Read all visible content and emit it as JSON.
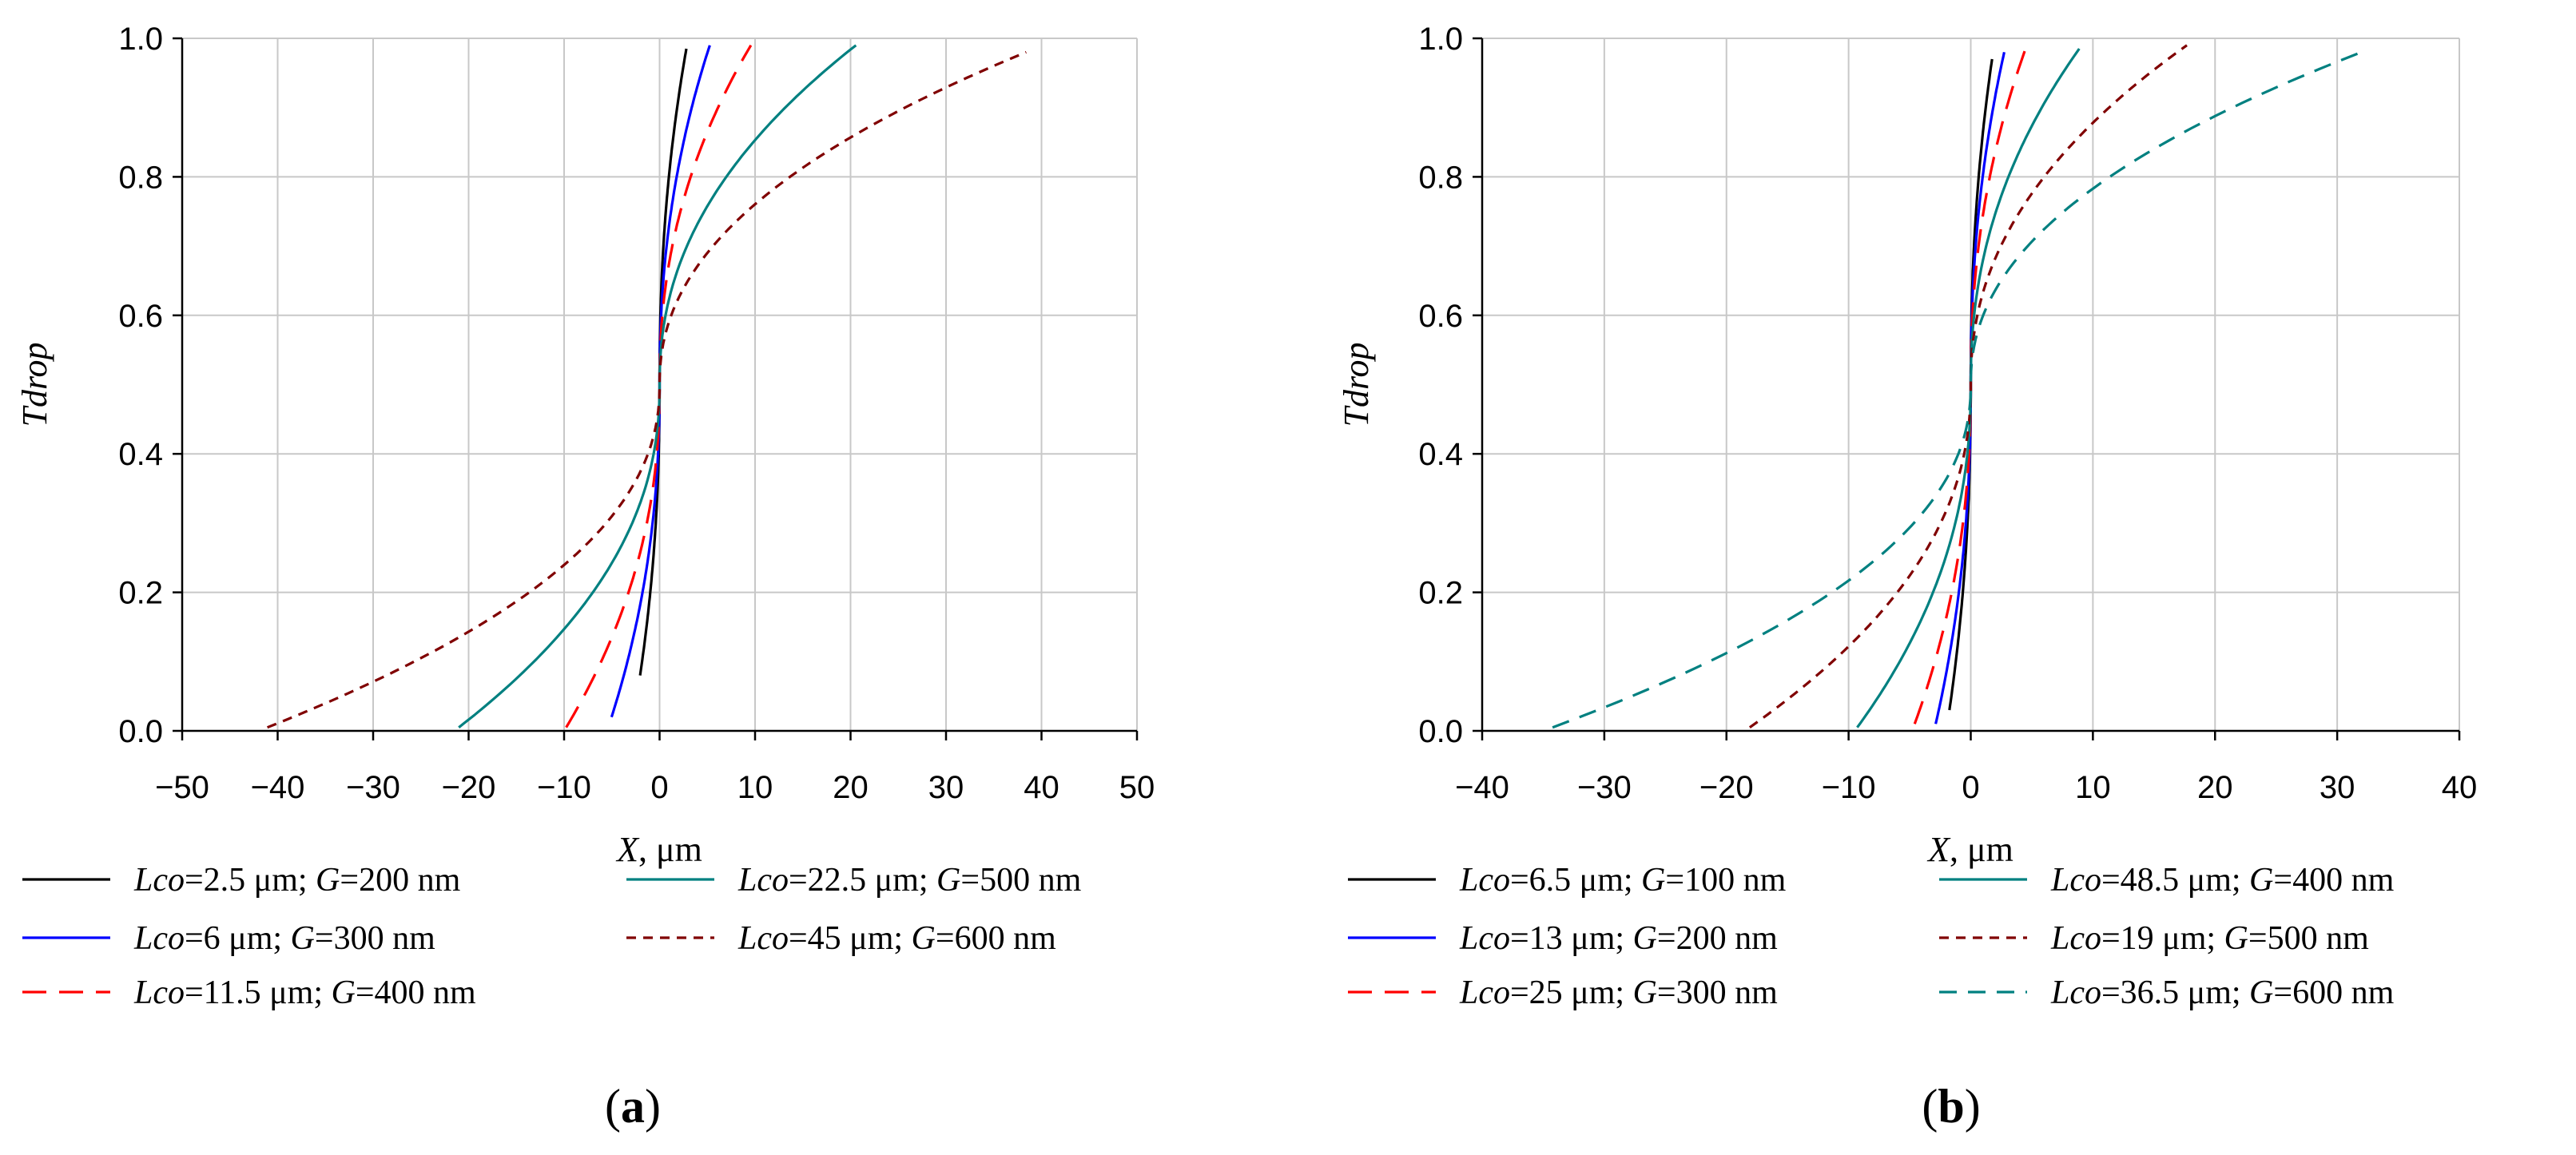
{
  "chart_data": [
    {
      "type": "line",
      "panel_label": "a",
      "xlabel": "X, μm",
      "ylabel": "Tdrop",
      "xlim": [
        -50,
        50
      ],
      "ylim": [
        0,
        1.0
      ],
      "xticks": [
        -50,
        -40,
        -30,
        -20,
        -10,
        0,
        10,
        20,
        30,
        40,
        50
      ],
      "yticks": [
        0.0,
        0.2,
        0.4,
        0.6,
        0.8,
        1.0
      ],
      "xtick_labels": [
        "−50",
        "−40",
        "−30",
        "−20",
        "−10",
        "0",
        "10",
        "20",
        "30",
        "40",
        "50"
      ],
      "ytick_labels": [
        "0.0",
        "0.2",
        "0.4",
        "0.6",
        "0.8",
        "1.0"
      ],
      "grid": true,
      "series": [
        {
          "name": "Lco=2.5 μm; G=200 nm",
          "lco": "2.5",
          "g": "200",
          "color": "#000000",
          "dash": "solid",
          "half_width": 3,
          "y_min": 0.08,
          "y_max": 0.985
        },
        {
          "name": "Lco=6 μm; G=300 nm",
          "lco": "6",
          "g": "300",
          "color": "#0000ff",
          "dash": "solid",
          "half_width": 5.5,
          "y_min": 0.02,
          "y_max": 0.99
        },
        {
          "name": "Lco=11.5 μm; G=400 nm",
          "lco": "11.5",
          "g": "400",
          "color": "#ff0000",
          "dash": "longdash",
          "half_width": 10,
          "y_min": 0.005,
          "y_max": 0.99
        },
        {
          "name": "Lco=22.5 μm; G=500 nm",
          "lco": "22.5",
          "g": "500",
          "color": "#008080",
          "dash": "solid",
          "half_width": 21.5,
          "y_min": 0.005,
          "y_max": 0.99
        },
        {
          "name": "Lco=45 μm; G=600 nm",
          "lco": "45",
          "g": "600",
          "color": "#800000",
          "dash": "shortdash",
          "half_width": 42,
          "y_min": 0.005,
          "y_max": 0.98
        }
      ]
    },
    {
      "type": "line",
      "panel_label": "b",
      "xlabel": "X, μm",
      "ylabel": "Tdrop",
      "xlim": [
        -40,
        40
      ],
      "ylim": [
        0,
        1.0
      ],
      "xticks": [
        -40,
        -30,
        -20,
        -10,
        0,
        10,
        20,
        30,
        40
      ],
      "yticks": [
        0.0,
        0.2,
        0.4,
        0.6,
        0.8,
        1.0
      ],
      "xtick_labels": [
        "−40",
        "−30",
        "−20",
        "−10",
        "0",
        "10",
        "20",
        "30",
        "40"
      ],
      "ytick_labels": [
        "0.0",
        "0.2",
        "0.4",
        "0.6",
        "0.8",
        "1.0"
      ],
      "grid": true,
      "series": [
        {
          "name": "Lco=6.5 μm; G=100 nm",
          "lco": "6.5",
          "g": "100",
          "color": "#000000",
          "dash": "solid",
          "half_width": 2,
          "y_min": 0.03,
          "y_max": 0.97
        },
        {
          "name": "Lco=13 μm; G=200 nm",
          "lco": "13",
          "g": "200",
          "color": "#0000ff",
          "dash": "solid",
          "half_width": 3,
          "y_min": 0.01,
          "y_max": 0.98
        },
        {
          "name": "Lco=25 μm; G=300 nm",
          "lco": "25",
          "g": "300",
          "color": "#ff0000",
          "dash": "longdash",
          "half_width": 4.8,
          "y_min": 0.01,
          "y_max": 0.985
        },
        {
          "name": "Lco=48.5 μm; G=400 nm",
          "lco": "48.5",
          "g": "400",
          "color": "#008080",
          "dash": "solid",
          "half_width": 9.5,
          "y_min": 0.005,
          "y_max": 0.985
        },
        {
          "name": "Lco=19 μm; G=500 nm",
          "lco": "19",
          "g": "500",
          "color": "#800000",
          "dash": "shortdash",
          "half_width": 18.5,
          "y_min": 0.005,
          "y_max": 0.99
        },
        {
          "name": "Lco=36.5 μm; G=600 nm",
          "lco": "36.5",
          "g": "600",
          "color": "#008080",
          "dash": "mediumdash",
          "half_width": 35,
          "y_min": 0.005,
          "y_max": 0.98
        }
      ]
    }
  ]
}
